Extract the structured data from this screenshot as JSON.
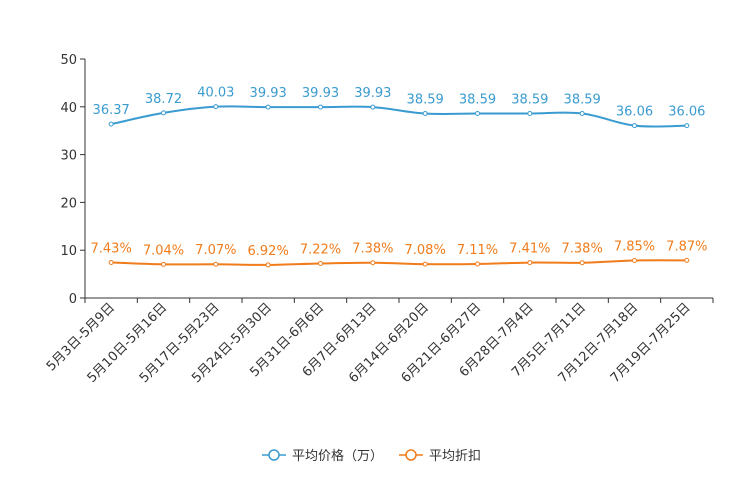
{
  "chart_data": {
    "type": "line",
    "categories": [
      "5月3日-5月9日",
      "5月10日-5月16日",
      "5月17日-5月23日",
      "5月24日-5月30日",
      "5月31日-6月6日",
      "6月7日-6月13日",
      "6月14日-6月20日",
      "6月21日-6月27日",
      "6月28日-7月4日",
      "7月5日-7月11日",
      "7月12日-7月18日",
      "7月19日-7月25日"
    ],
    "series": [
      {
        "name": "平均价格（万）",
        "color": "#3a9bd0",
        "values": [
          36.37,
          38.72,
          40.03,
          39.93,
          39.93,
          39.93,
          38.59,
          38.59,
          38.59,
          38.59,
          36.06,
          36.06
        ],
        "labels": [
          "36.37",
          "38.72",
          "40.03",
          "39.93",
          "39.93",
          "39.93",
          "38.59",
          "38.59",
          "38.59",
          "38.59",
          "36.06",
          "36.06"
        ]
      },
      {
        "name": "平均折扣",
        "color": "#f07c1c",
        "values": [
          7.43,
          7.04,
          7.07,
          6.92,
          7.22,
          7.38,
          7.08,
          7.11,
          7.41,
          7.38,
          7.85,
          7.87
        ],
        "labels": [
          "7.43%",
          "7.04%",
          "7.07%",
          "6.92%",
          "7.22%",
          "7.38%",
          "7.08%",
          "7.11%",
          "7.41%",
          "7.38%",
          "7.85%",
          "7.87%"
        ]
      }
    ],
    "yticks": [
      "0",
      "10",
      "20",
      "30",
      "40",
      "50"
    ],
    "ylim": [
      0,
      50
    ],
    "title": "",
    "xlabel": "",
    "ylabel": "",
    "legend_position": "bottom-center"
  }
}
